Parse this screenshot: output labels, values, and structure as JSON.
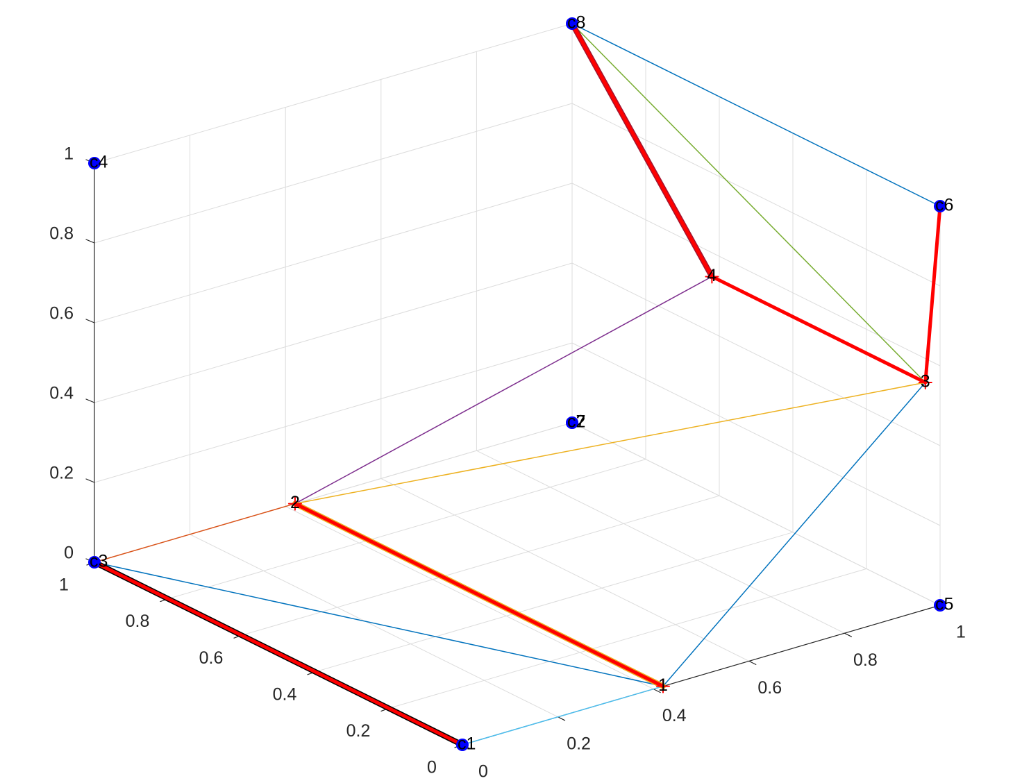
{
  "chart_data": {
    "type": "scatter",
    "title": "",
    "xlabel": "",
    "ylabel": "",
    "zlabel": "",
    "xlim": [
      0,
      1
    ],
    "ylim": [
      0,
      1
    ],
    "zlim": [
      0,
      1
    ],
    "grid": true,
    "x_ticks": [
      "0",
      "0.2",
      "0.4",
      "0.6",
      "0.8",
      "1"
    ],
    "y_ticks": [
      "0",
      "0.2",
      "0.4",
      "0.6",
      "0.8",
      "1"
    ],
    "z_ticks": [
      "0",
      "0.2",
      "0.4",
      "0.6",
      "0.8",
      "1"
    ],
    "points": [
      {
        "label": "c1",
        "x": 0,
        "y": 0,
        "z": 0,
        "color": "#0000ff"
      },
      {
        "label": "c2",
        "x": 1,
        "y": 1,
        "z": 0,
        "color": "#0000ff"
      },
      {
        "label": "c3",
        "x": 0,
        "y": 1,
        "z": 0,
        "color": "#0000ff"
      },
      {
        "label": "c4",
        "x": 0,
        "y": 1,
        "z": 1,
        "color": "#0000ff"
      },
      {
        "label": "c5",
        "x": 1,
        "y": 0,
        "z": 0,
        "color": "#0000ff"
      },
      {
        "label": "c6",
        "x": 1,
        "y": 0,
        "z": 1,
        "color": "#0000ff"
      },
      {
        "label": "c7",
        "x": 1,
        "y": 1,
        "z": 0,
        "color": "#0000ff"
      },
      {
        "label": "c8",
        "x": 1,
        "y": 1,
        "z": 1,
        "color": "#0000ff"
      }
    ],
    "nodes": [
      {
        "label": "1",
        "x": 0.42,
        "y": 0,
        "z": 0
      },
      {
        "label": "2",
        "x": 0.42,
        "y": 1,
        "z": 0
      },
      {
        "label": "3",
        "x": 1,
        "y": 0.04,
        "z": 0.54
      },
      {
        "label": "4",
        "x": 1,
        "y": 0.62,
        "z": 0.54
      }
    ],
    "edges": [
      {
        "from": "c1",
        "to": "1",
        "color": "#4dbeee",
        "width": 1.5
      },
      {
        "from": "c3",
        "to": "1",
        "color": "#0072bd",
        "width": 1.5
      },
      {
        "from": "c3",
        "to": "2",
        "color": "#d95319",
        "width": 1.5
      },
      {
        "from": "2",
        "to": "3",
        "color": "#edb120",
        "width": 1.5
      },
      {
        "from": "2",
        "to": "4",
        "color": "#7e2f8e",
        "width": 1.5
      },
      {
        "from": "1",
        "to": "3",
        "color": "#0072bd",
        "width": 1.5
      },
      {
        "from": "c8",
        "to": "3",
        "color": "#77ac30",
        "width": 1.5
      },
      {
        "from": "c8",
        "to": "c6",
        "color": "#0072bd",
        "width": 1.5
      },
      {
        "from": "c3",
        "to": "c1",
        "color": "#ff0000",
        "width": 5,
        "outline": "#000000"
      },
      {
        "from": "2",
        "to": "1",
        "color": "#ff0000",
        "width": 5,
        "outline": "#edb120"
      },
      {
        "from": "4",
        "to": "c8",
        "color": "#ff0000",
        "width": 5,
        "outline": "#a2142f"
      },
      {
        "from": "4",
        "to": "3",
        "color": "#ff0000",
        "width": 5
      },
      {
        "from": "3",
        "to": "c6",
        "color": "#ff0000",
        "width": 5
      }
    ]
  }
}
